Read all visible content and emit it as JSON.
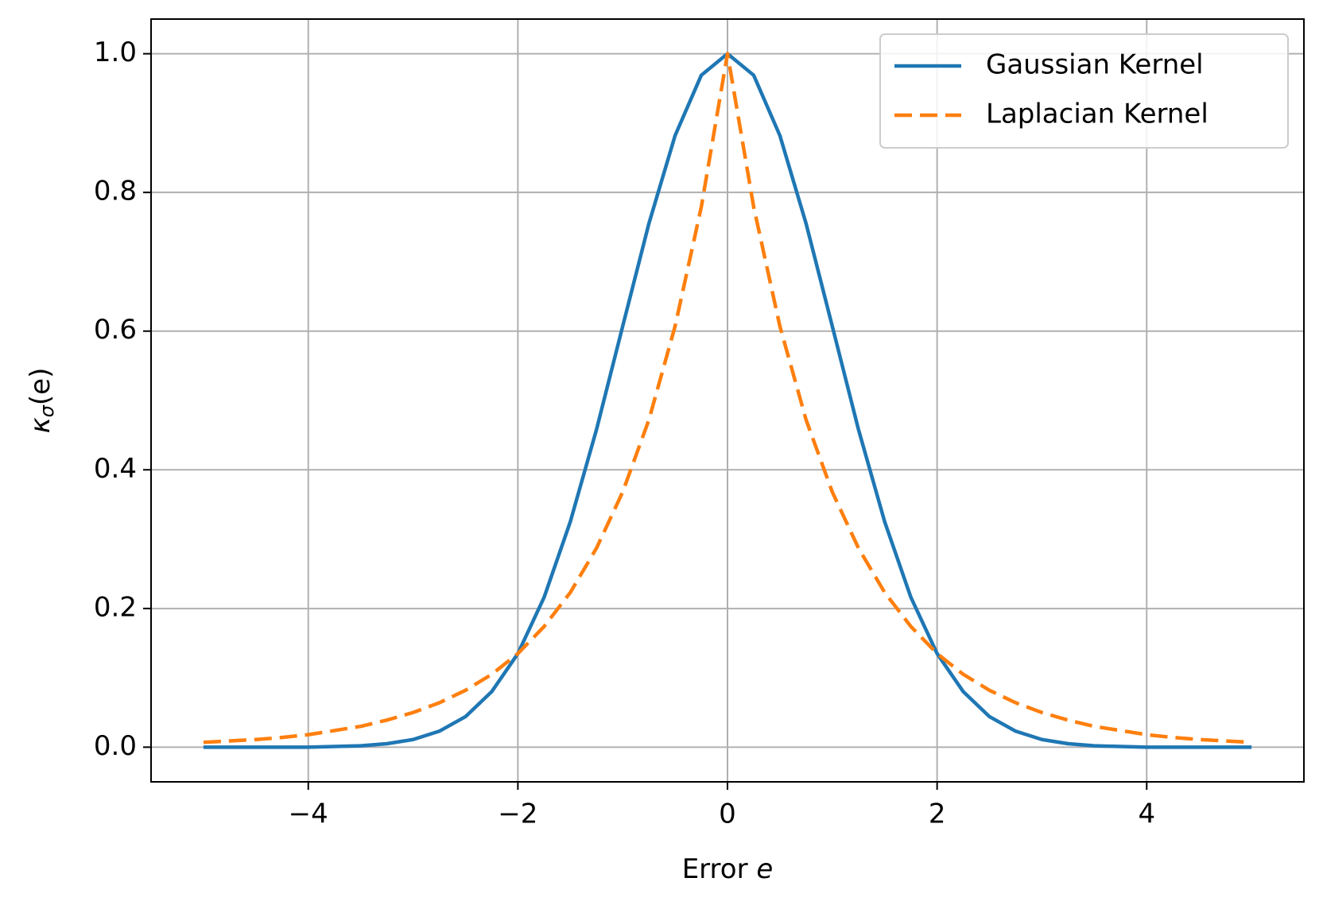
{
  "chart_data": {
    "type": "line",
    "x_label": {
      "text": "Error",
      "variable": "e"
    },
    "y_label": {
      "symbol": "κ",
      "subscript": "σ",
      "argument": "(e)"
    },
    "x": [
      -5,
      -4.75,
      -4.5,
      -4.25,
      -4,
      -3.75,
      -3.5,
      -3.25,
      -3,
      -2.75,
      -2.5,
      -2.25,
      -2,
      -1.75,
      -1.5,
      -1.25,
      -1,
      -0.75,
      -0.5,
      -0.25,
      0,
      0.25,
      0.5,
      0.75,
      1,
      1.25,
      1.5,
      1.75,
      2,
      2.25,
      2.5,
      2.75,
      3,
      3.25,
      3.5,
      3.75,
      4,
      4.25,
      4.5,
      4.75,
      5
    ],
    "series": [
      {
        "name": "Gaussian Kernel",
        "color": "#1f77b4",
        "linestyle": "solid",
        "values": [
          0,
          0,
          0,
          0,
          0,
          0.001,
          0.002,
          0.005,
          0.011,
          0.023,
          0.044,
          0.08,
          0.135,
          0.216,
          0.325,
          0.458,
          0.607,
          0.755,
          0.882,
          0.969,
          1,
          0.969,
          0.882,
          0.755,
          0.607,
          0.458,
          0.325,
          0.216,
          0.135,
          0.08,
          0.044,
          0.023,
          0.011,
          0.005,
          0.002,
          0.001,
          0,
          0,
          0,
          0,
          0
        ]
      },
      {
        "name": "Laplacian Kernel",
        "color": "#ff7f0e",
        "linestyle": "dashed",
        "values": [
          0.007,
          0.009,
          0.011,
          0.014,
          0.018,
          0.024,
          0.03,
          0.039,
          0.05,
          0.064,
          0.082,
          0.105,
          0.135,
          0.174,
          0.223,
          0.287,
          0.368,
          0.472,
          0.607,
          0.779,
          1,
          0.779,
          0.607,
          0.472,
          0.368,
          0.287,
          0.223,
          0.174,
          0.135,
          0.105,
          0.082,
          0.064,
          0.05,
          0.039,
          0.03,
          0.024,
          0.018,
          0.014,
          0.011,
          0.009,
          0.007
        ]
      }
    ],
    "xlim": [
      -5.5,
      5.5
    ],
    "ylim": [
      -0.05,
      1.05
    ],
    "xticks": [
      {
        "value": -4,
        "label": "−4"
      },
      {
        "value": -2,
        "label": "−2"
      },
      0,
      2,
      4
    ],
    "yticks": [
      {
        "value": 0,
        "label": "0.0"
      },
      0.2,
      0.4,
      0.6,
      0.8,
      {
        "value": 1,
        "label": "1.0"
      }
    ],
    "grid": true,
    "legend": "upper right"
  }
}
